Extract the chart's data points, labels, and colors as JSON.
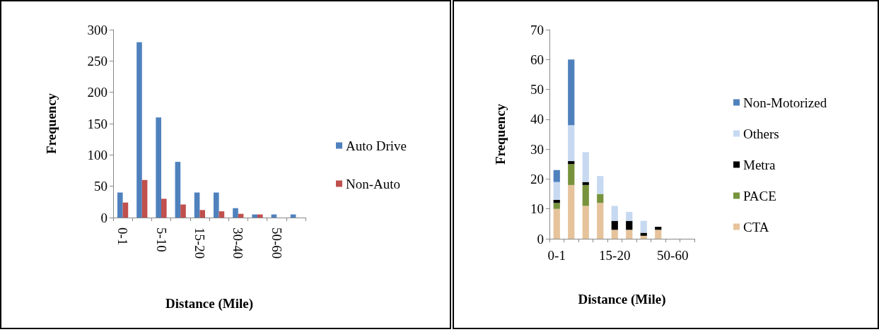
{
  "chart_data": [
    {
      "type": "bar",
      "xlabel": "Distance (Mile)",
      "ylabel": "Frequency",
      "categories": [
        "0-1",
        null,
        "5-10",
        null,
        "15-20",
        null,
        "30-40",
        null,
        "50-60",
        null
      ],
      "series": [
        {
          "name": "Auto Drive",
          "color": "#4f81bd",
          "values": [
            40,
            280,
            160,
            89,
            40,
            40,
            15,
            5,
            5,
            5
          ]
        },
        {
          "name": "Non-Auto",
          "color": "#c0504d",
          "values": [
            24,
            60,
            30,
            21,
            12,
            10,
            6,
            5,
            0,
            0
          ]
        }
      ],
      "ylim": [
        0,
        300
      ],
      "yticks": [
        0,
        50,
        100,
        150,
        200,
        250,
        300
      ],
      "grid": false,
      "legend": "right"
    },
    {
      "type": "bar",
      "xlabel": "Distance (Mile)",
      "ylabel": "Frequency",
      "stacked": true,
      "categories": [
        "0-1",
        null,
        null,
        null,
        "15-20",
        null,
        null,
        null,
        "50-60",
        null
      ],
      "series": [
        {
          "name": "CTA",
          "color": "#e6c39b",
          "values": [
            10,
            18,
            11,
            12,
            3,
            3,
            1,
            3,
            0,
            0
          ]
        },
        {
          "name": "PACE",
          "color": "#77933c",
          "values": [
            2,
            7,
            7,
            3,
            0,
            0,
            0,
            0,
            0,
            0
          ]
        },
        {
          "name": "Metra",
          "color": "#000000",
          "values": [
            1,
            1,
            1,
            0,
            3,
            3,
            1,
            1,
            0,
            0
          ]
        },
        {
          "name": "Others",
          "color": "#c6d9f1",
          "values": [
            6,
            12,
            10,
            6,
            5,
            3,
            4,
            0,
            0,
            0
          ]
        },
        {
          "name": "Non-Motorized",
          "color": "#4f81bd",
          "values": [
            4,
            22,
            0,
            0,
            0,
            0,
            0,
            0,
            0,
            0
          ]
        }
      ],
      "ylim": [
        0,
        70
      ],
      "yticks": [
        0,
        10,
        20,
        30,
        40,
        50,
        60,
        70
      ],
      "grid": false,
      "legend": "right"
    }
  ]
}
